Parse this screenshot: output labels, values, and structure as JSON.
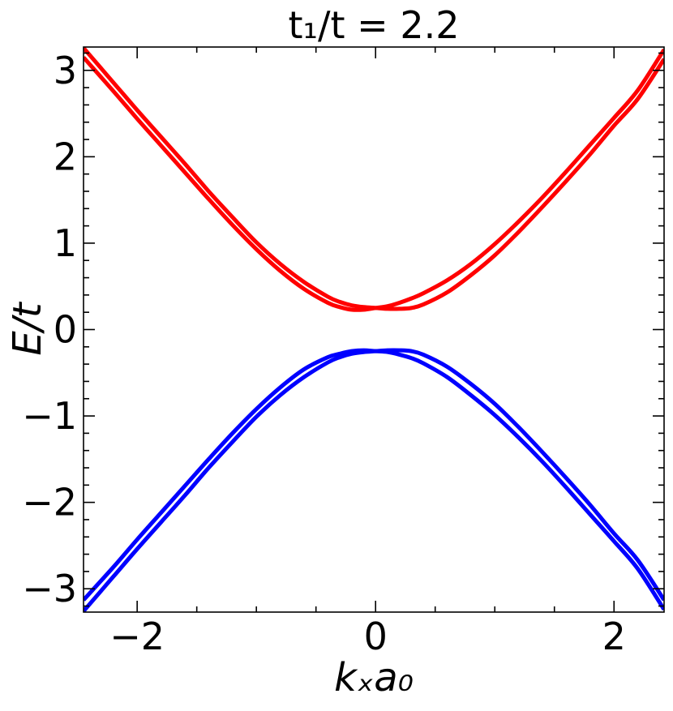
{
  "chart_data": {
    "type": "line",
    "title": "t₁/t = 2.2",
    "xlabel": "kₓa₀",
    "ylabel": "E/t",
    "xlim": [
      -2.45,
      2.42
    ],
    "ylim": [
      -3.27,
      3.27
    ],
    "x_ticks": [
      -2,
      0,
      2
    ],
    "x_tick_labels": [
      "−2",
      "0",
      "2"
    ],
    "x_minor_step": 0.5,
    "y_ticks": [
      -3,
      -2,
      -1,
      0,
      1,
      2,
      3
    ],
    "y_tick_labels": [
      "−3",
      "−2",
      "−1",
      "0",
      "1",
      "2",
      "3"
    ],
    "y_minor_step": 0.2,
    "grid": false,
    "x": [
      -2.45,
      -2.2,
      -2.0,
      -1.8,
      -1.6,
      -1.4,
      -1.2,
      -1.0,
      -0.8,
      -0.6,
      -0.4,
      -0.3,
      -0.2,
      -0.1,
      0.0,
      0.1,
      0.2,
      0.3,
      0.4,
      0.6,
      0.8,
      1.0,
      1.2,
      1.4,
      1.6,
      1.8,
      2.0,
      2.2,
      2.42
    ],
    "series": [
      {
        "color": "#ff0000",
        "values": [
          3.15,
          2.76,
          2.44,
          2.13,
          1.82,
          1.51,
          1.21,
          0.93,
          0.68,
          0.47,
          0.31,
          0.26,
          0.23,
          0.23,
          0.25,
          0.27,
          0.31,
          0.36,
          0.42,
          0.57,
          0.76,
          0.99,
          1.25,
          1.53,
          1.83,
          2.14,
          2.45,
          2.77,
          3.24
        ]
      },
      {
        "color": "#ff0000",
        "values": [
          3.26,
          2.86,
          2.54,
          2.23,
          1.92,
          1.6,
          1.3,
          1.01,
          0.76,
          0.55,
          0.38,
          0.32,
          0.28,
          0.26,
          0.25,
          0.24,
          0.24,
          0.25,
          0.29,
          0.43,
          0.63,
          0.86,
          1.13,
          1.42,
          1.72,
          2.03,
          2.36,
          2.67,
          3.13
        ]
      },
      {
        "color": "#0000ff",
        "values": [
          -3.13,
          -2.75,
          -2.43,
          -2.12,
          -1.81,
          -1.5,
          -1.2,
          -0.92,
          -0.67,
          -0.46,
          -0.32,
          -0.28,
          -0.25,
          -0.24,
          -0.25,
          -0.26,
          -0.29,
          -0.33,
          -0.39,
          -0.55,
          -0.76,
          -0.99,
          -1.25,
          -1.53,
          -1.83,
          -2.14,
          -2.45,
          -2.77,
          -3.24
        ]
      },
      {
        "color": "#0000ff",
        "values": [
          -3.26,
          -2.86,
          -2.54,
          -2.23,
          -1.92,
          -1.6,
          -1.3,
          -1.01,
          -0.76,
          -0.55,
          -0.38,
          -0.32,
          -0.28,
          -0.26,
          -0.25,
          -0.24,
          -0.24,
          -0.25,
          -0.29,
          -0.43,
          -0.63,
          -0.86,
          -1.13,
          -1.42,
          -1.72,
          -2.03,
          -2.36,
          -2.67,
          -3.13
        ]
      }
    ]
  }
}
